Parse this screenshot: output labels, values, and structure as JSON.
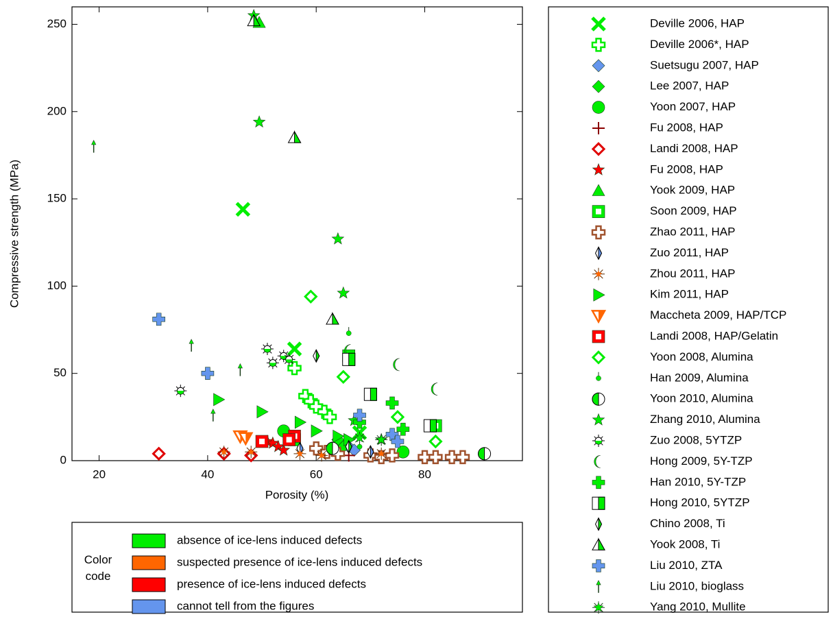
{
  "chart_data": {
    "type": "scatter",
    "x_label": "Porosity (%)",
    "y_label": "Compressive strength (MPa)",
    "xlim": [
      15,
      98
    ],
    "ylim": [
      0,
      260
    ],
    "xticks": [
      20,
      40,
      60,
      80
    ],
    "yticks": [
      0,
      50,
      100,
      150,
      200,
      250
    ],
    "series": [
      {
        "name": "Deville 2006, HAP",
        "color": "#00ee00",
        "marker": "x",
        "x": [
          46.5,
          56,
          68
        ],
        "values": [
          144,
          64,
          16
        ]
      },
      {
        "name": "Deville 2006*, HAP",
        "color": "#00ee00",
        "marker": "plus-outline",
        "x": [
          56,
          58,
          59,
          60,
          61.5,
          62.5
        ],
        "values": [
          53,
          37,
          34,
          31,
          28,
          25
        ]
      },
      {
        "name": "Suetsugu 2007, HAP",
        "color": "#6495ed",
        "marker": "diamond",
        "x": [
          66,
          67
        ],
        "values": [
          8,
          6
        ]
      },
      {
        "name": "Lee 2007, HAP",
        "color": "#00ee00",
        "marker": "diamond",
        "x": [
          64,
          65
        ],
        "values": [
          12,
          8
        ]
      },
      {
        "name": "Yoon 2007, HAP",
        "color": "#00ee00",
        "marker": "circle",
        "x": [
          54,
          76
        ],
        "values": [
          17,
          5
        ]
      },
      {
        "name": "Fu 2008, HAP",
        "color": "#8b0000",
        "marker": "cross-thin",
        "x": [
          66
        ],
        "values": [
          3
        ]
      },
      {
        "name": "Landi 2008, HAP",
        "color": "#e00000",
        "marker": "diamond-outline",
        "x": [
          31,
          43,
          48
        ],
        "values": [
          4,
          4,
          3
        ]
      },
      {
        "name": "Fu 2008, HAP",
        "color": "#ff0000",
        "marker": "star",
        "x": [
          51,
          52,
          53,
          54
        ],
        "values": [
          11,
          10,
          8,
          6
        ]
      },
      {
        "name": "Yook 2009, HAP",
        "color": "#00ee00",
        "marker": "triangle",
        "x": [
          49.5
        ],
        "values": [
          251
        ]
      },
      {
        "name": "Soon 2009, HAP",
        "color": "#00ee00",
        "marker": "square-hollow",
        "x": [
          66,
          82,
          56
        ],
        "values": [
          60,
          20,
          12
        ]
      },
      {
        "name": "Zhao 2011, HAP",
        "color": "#a0522d",
        "marker": "plus-outline",
        "x": [
          60,
          62,
          64,
          70,
          72,
          74,
          80,
          82,
          85,
          87
        ],
        "values": [
          7,
          5,
          4,
          3,
          2,
          3,
          2,
          2,
          2,
          2
        ]
      },
      {
        "name": "Zuo 2011, HAP",
        "color": "#6495ed",
        "marker": "half-diamond",
        "x": [
          57,
          66,
          70
        ],
        "values": [
          7,
          8,
          5
        ]
      },
      {
        "name": "Zhou 2011, HAP",
        "color": "#ff6600",
        "marker": "asterisk",
        "x": [
          43,
          48,
          57,
          61,
          72
        ],
        "values": [
          5,
          5,
          4,
          3,
          4
        ]
      },
      {
        "name": "Kim 2011, HAP",
        "color": "#00ee00",
        "marker": "triangle-right",
        "x": [
          42,
          50,
          57,
          60,
          64,
          66
        ],
        "values": [
          35,
          28,
          22,
          17,
          14,
          12
        ]
      },
      {
        "name": "Maccheta 2009, HAP/TCP",
        "color": "#ff6600",
        "marker": "triangle-down",
        "x": [
          46,
          47
        ],
        "values": [
          14,
          13
        ]
      },
      {
        "name": "Landi 2008, HAP/Gelatin",
        "color": "#ff0000",
        "marker": "square-hollow",
        "x": [
          50,
          56,
          55
        ],
        "values": [
          11,
          14,
          12
        ]
      },
      {
        "name": "Yoon 2008, Alumina",
        "color": "#00ee00",
        "marker": "diamond-outline",
        "x": [
          59,
          65,
          75,
          82
        ],
        "values": [
          94,
          48,
          25,
          11
        ]
      },
      {
        "name": "Han 2009, Alumina",
        "color": "#00ee00",
        "marker": "pin",
        "x": [
          66,
          68
        ],
        "values": [
          73,
          8
        ]
      },
      {
        "name": "Yoon 2010, Alumina",
        "color": "#00ee00",
        "marker": "circle-half",
        "x": [
          91,
          63
        ],
        "values": [
          4,
          7
        ]
      },
      {
        "name": "Zhang 2010, Alumina",
        "color": "#00ee00",
        "marker": "star",
        "x": [
          48.5,
          49.5,
          64,
          65,
          67,
          72
        ],
        "values": [
          255,
          194,
          127,
          96,
          23,
          12
        ]
      },
      {
        "name": "Zuo 2008, 5YTZP",
        "color": "#00ee00",
        "marker": "asterisk-circle",
        "x": [
          35,
          51,
          52,
          54,
          55
        ],
        "values": [
          40,
          64,
          56,
          60,
          58
        ]
      },
      {
        "name": "Hong 2009, 5Y-TZP",
        "color": "#00ee00",
        "marker": "crescent",
        "x": [
          75,
          82,
          66
        ],
        "values": [
          55,
          41,
          63
        ]
      },
      {
        "name": "Han 2010, 5Y-TZP",
        "color": "#00ee00",
        "marker": "plus",
        "x": [
          66,
          74,
          76,
          68
        ],
        "values": [
          58,
          33,
          18,
          22
        ]
      },
      {
        "name": "Hong 2010, 5YTZP",
        "color": "#00ee00",
        "marker": "square-half",
        "x": [
          66,
          70,
          81
        ],
        "values": [
          58,
          38,
          20
        ]
      },
      {
        "name": "Chino 2008, Ti",
        "color": "#00ee00",
        "marker": "half-diamond",
        "x": [
          60,
          66
        ],
        "values": [
          60,
          8
        ]
      },
      {
        "name": "Yook 2008, Ti",
        "color": "#00ee00",
        "marker": "triangle-half",
        "x": [
          48.5,
          56,
          63
        ],
        "values": [
          252,
          185,
          81
        ]
      },
      {
        "name": "Liu 2010, ZTA",
        "color": "#6495ed",
        "marker": "plus",
        "x": [
          31,
          40,
          68,
          74,
          75
        ],
        "values": [
          81,
          50,
          26,
          15,
          11
        ]
      },
      {
        "name": "Liu 2010, bioglass",
        "color": "#00ee00",
        "marker": "arrow",
        "x": [
          19,
          37,
          46,
          41
        ],
        "values": [
          180,
          66,
          52,
          26
        ]
      },
      {
        "name": "Yang 2010, Mullite",
        "color": "#00ee00",
        "marker": "star-asterisk",
        "x": [
          68,
          72
        ],
        "values": [
          13,
          12
        ]
      }
    ],
    "color_code": {
      "title": "Color code",
      "items": [
        {
          "name": "absence of ice-lens induced defects",
          "color": "#00ee00"
        },
        {
          "name": "suspected presence of ice-lens induced defects",
          "color": "#ff6600"
        },
        {
          "name": "presence of ice-lens induced defects",
          "color": "#ff0000"
        },
        {
          "name": "cannot tell from the figures",
          "color": "#6495ed"
        }
      ]
    }
  }
}
